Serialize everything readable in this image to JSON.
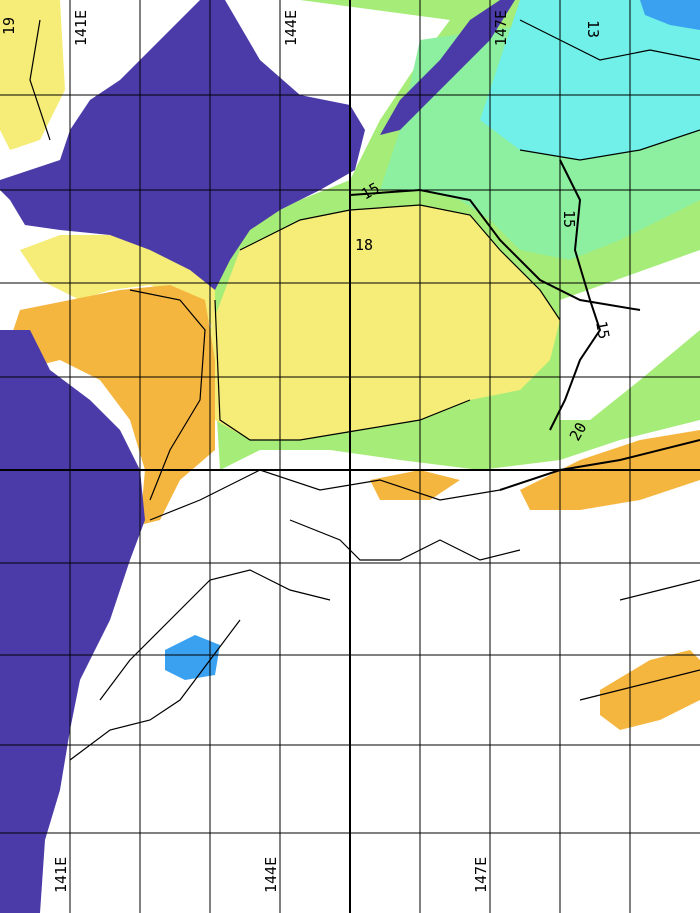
{
  "map": {
    "top_longitude_labels": [
      "141E",
      "144E",
      "147E"
    ],
    "bottom_longitude_labels": [
      "141E",
      "144E",
      "147E"
    ],
    "contour_labels": [
      "19",
      "15",
      "13",
      "18",
      "15",
      "15",
      "20"
    ],
    "colors": {
      "land": "#4B3BA8",
      "cloud": "#ffffff",
      "warm_orange": "#F5B640",
      "yellow": "#F6EC78",
      "green": "#A6EC78",
      "light_green": "#8CF0A0",
      "cyan": "#70F0E8",
      "blue": "#3AA0F0",
      "contour": "#000000",
      "grid": "#000000"
    }
  }
}
